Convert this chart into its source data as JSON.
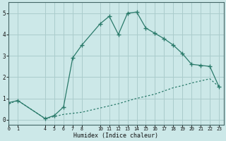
{
  "xlabel": "Humidex (Indice chaleur)",
  "x_upper": [
    0,
    1,
    4,
    5,
    6,
    7,
    8,
    10,
    11,
    12,
    13,
    14,
    15,
    16,
    17,
    18,
    19,
    20,
    21,
    22,
    23
  ],
  "y_upper": [
    0.8,
    0.9,
    0.05,
    0.2,
    0.6,
    2.9,
    3.5,
    4.5,
    4.85,
    4.0,
    5.0,
    5.05,
    4.3,
    4.05,
    3.8,
    3.5,
    3.1,
    2.6,
    2.55,
    2.5,
    1.55
  ],
  "x_lower": [
    0,
    1,
    4,
    5,
    6,
    7,
    8,
    10,
    11,
    12,
    13,
    14,
    15,
    16,
    17,
    18,
    19,
    20,
    21,
    22,
    23
  ],
  "y_lower": [
    0.75,
    0.9,
    0.05,
    0.15,
    0.25,
    0.3,
    0.35,
    0.55,
    0.65,
    0.75,
    0.88,
    1.0,
    1.1,
    1.2,
    1.35,
    1.5,
    1.6,
    1.72,
    1.82,
    1.92,
    1.55
  ],
  "line_color": "#2a7a6a",
  "bg_color": "#cce8e8",
  "grid_color": "#aacccc",
  "xlim": [
    0,
    23.5
  ],
  "ylim": [
    -0.25,
    5.5
  ],
  "yticks": [
    0,
    1,
    2,
    3,
    4,
    5
  ],
  "xticks": [
    0,
    1,
    4,
    5,
    6,
    7,
    8,
    10,
    11,
    12,
    13,
    14,
    15,
    16,
    17,
    18,
    19,
    20,
    21,
    22,
    23
  ]
}
